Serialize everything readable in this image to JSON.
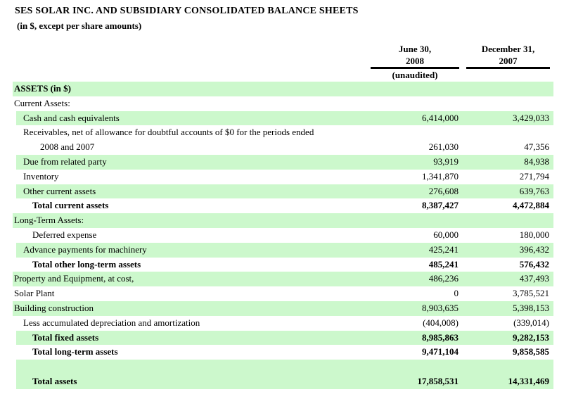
{
  "title": "SES SOLAR INC. AND SUBSIDIARY CONSOLIDATED BALANCE SHEETS",
  "subtitle": "(in $, except per share amounts)",
  "columns": [
    {
      "line1": "June 30,",
      "line2": "2008",
      "note": "(unaudited)"
    },
    {
      "line1": "December 31,",
      "line2": "2007",
      "note": ""
    }
  ],
  "colors": {
    "band_green": "#ccf8cc"
  },
  "rows": [
    {
      "label": "ASSETS (in $)",
      "v1": "",
      "v2": "",
      "indent": 0,
      "green": true,
      "bold": true
    },
    {
      "label": "Current Assets:",
      "v1": "",
      "v2": "",
      "indent": 0,
      "green": false,
      "bold": false
    },
    {
      "label": "Cash and cash equivalents",
      "v1": "6,414,000",
      "v2": "3,429,033",
      "indent": 1,
      "green": true,
      "bold": false
    },
    {
      "label": "Receivables, net of allowance for doubtful accounts of $0 for the periods ended",
      "label2": "2008 and 2007",
      "v1": "261,030",
      "v2": "47,356",
      "indent": 1,
      "green": false,
      "bold": false
    },
    {
      "label": "Due from related party",
      "v1": "93,919",
      "v2": "84,938",
      "indent": 1,
      "green": true,
      "bold": false
    },
    {
      "label": "Inventory",
      "v1": "1,341,870",
      "v2": "271,794",
      "indent": 1,
      "green": false,
      "bold": false
    },
    {
      "label": "Other current assets",
      "v1": "276,608",
      "v2": "639,763",
      "indent": 1,
      "green": true,
      "bold": false
    },
    {
      "label": "Total current assets",
      "v1": "8,387,427",
      "v2": "4,472,884",
      "indent": 2,
      "green": false,
      "bold": true
    },
    {
      "label": "Long-Term Assets:",
      "v1": "",
      "v2": "",
      "indent": 0,
      "green": true,
      "bold": false
    },
    {
      "label": "Deferred expense",
      "v1": "60,000",
      "v2": "180,000",
      "indent": 2,
      "green": false,
      "bold": false
    },
    {
      "label": "Advance payments for machinery",
      "v1": "425,241",
      "v2": "396,432",
      "indent": 1,
      "green": true,
      "bold": false
    },
    {
      "label": "Total other long-term assets",
      "v1": "485,241",
      "v2": "576,432",
      "indent": 2,
      "green": false,
      "bold": true
    },
    {
      "label": "Property and Equipment, at cost,",
      "v1": "486,236",
      "v2": "437,493",
      "indent": 0,
      "green": true,
      "bold": false
    },
    {
      "label": "Solar Plant",
      "v1": "0",
      "v2": "3,785,521",
      "indent": 0,
      "green": false,
      "bold": false
    },
    {
      "label": "Building construction",
      "v1": "8,903,635",
      "v2": "5,398,153",
      "indent": 0,
      "green": true,
      "bold": false
    },
    {
      "label": "Less accumulated depreciation and amortization",
      "v1": "(404,008)",
      "v2": "(339,014)",
      "indent": 1,
      "green": false,
      "bold": false
    },
    {
      "label": "Total fixed assets",
      "v1": "8,985,863",
      "v2": "9,282,153",
      "indent": 2,
      "green": true,
      "bold": true
    },
    {
      "label": "Total long-term assets",
      "v1": "9,471,104",
      "v2": "9,858,585",
      "indent": 2,
      "green": false,
      "bold": true
    },
    {
      "label": "Total assets",
      "v1": "17,858,531",
      "v2": "14,331,469",
      "indent": 2,
      "green": true,
      "bold": true,
      "spacer_top": true
    }
  ]
}
